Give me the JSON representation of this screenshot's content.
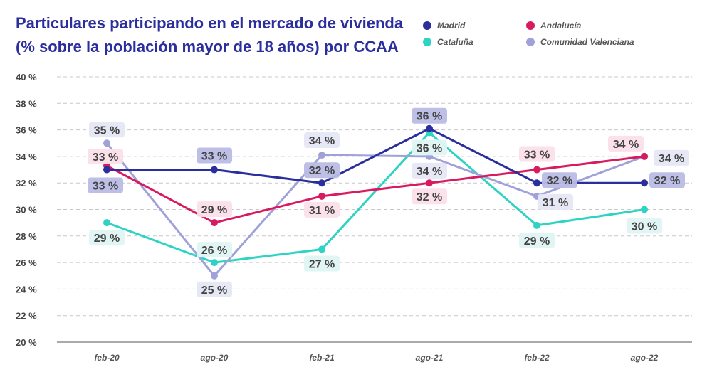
{
  "chart_data": {
    "type": "line",
    "title_line1": "Particulares participando en el mercado de vivienda",
    "title_line2": "(% sobre la población mayor de 18 años) por CCAA",
    "categories": [
      "feb-20",
      "ago-20",
      "feb-21",
      "ago-21",
      "feb-22",
      "ago-22"
    ],
    "ylim": [
      20,
      40
    ],
    "yticks": [
      "20 %",
      "22 %",
      "24 %",
      "26 %",
      "28 %",
      "30 %",
      "32 %",
      "34 %",
      "36 %",
      "38 %",
      "40 %"
    ],
    "grid": true,
    "legend_position": "top-right",
    "series": [
      {
        "name": "Madrid",
        "color": "#2b2f9e",
        "label_bg": "#b9bce6",
        "values": [
          33,
          33,
          32,
          36.1,
          32,
          32
        ],
        "labels": [
          "33 %",
          "33 %",
          "32 %",
          "36 %",
          "32 %",
          "32 %"
        ]
      },
      {
        "name": "Andalucía",
        "color": "#d81b60",
        "label_bg": "#fbe0e9",
        "values": [
          33.3,
          29,
          31,
          32,
          33,
          34
        ],
        "labels": [
          "33 %",
          "29 %",
          "31 %",
          "32 %",
          "33 %",
          "34 %"
        ]
      },
      {
        "name": "Cataluña",
        "color": "#2ed3c4",
        "label_bg": "#dff6f3",
        "values": [
          29,
          26,
          27,
          35.8,
          28.8,
          30
        ],
        "labels": [
          "29 %",
          "26 %",
          "27 %",
          "36 %",
          "29 %",
          "30 %"
        ]
      },
      {
        "name": "Comunidad Valenciana",
        "color": "#9fa1d8",
        "label_bg": "#e6e7f6",
        "values": [
          35,
          25,
          34.1,
          34,
          31,
          34
        ],
        "labels": [
          "35 %",
          "25 %",
          "34 %",
          "34 %",
          "31 %",
          "34 %"
        ]
      }
    ]
  }
}
